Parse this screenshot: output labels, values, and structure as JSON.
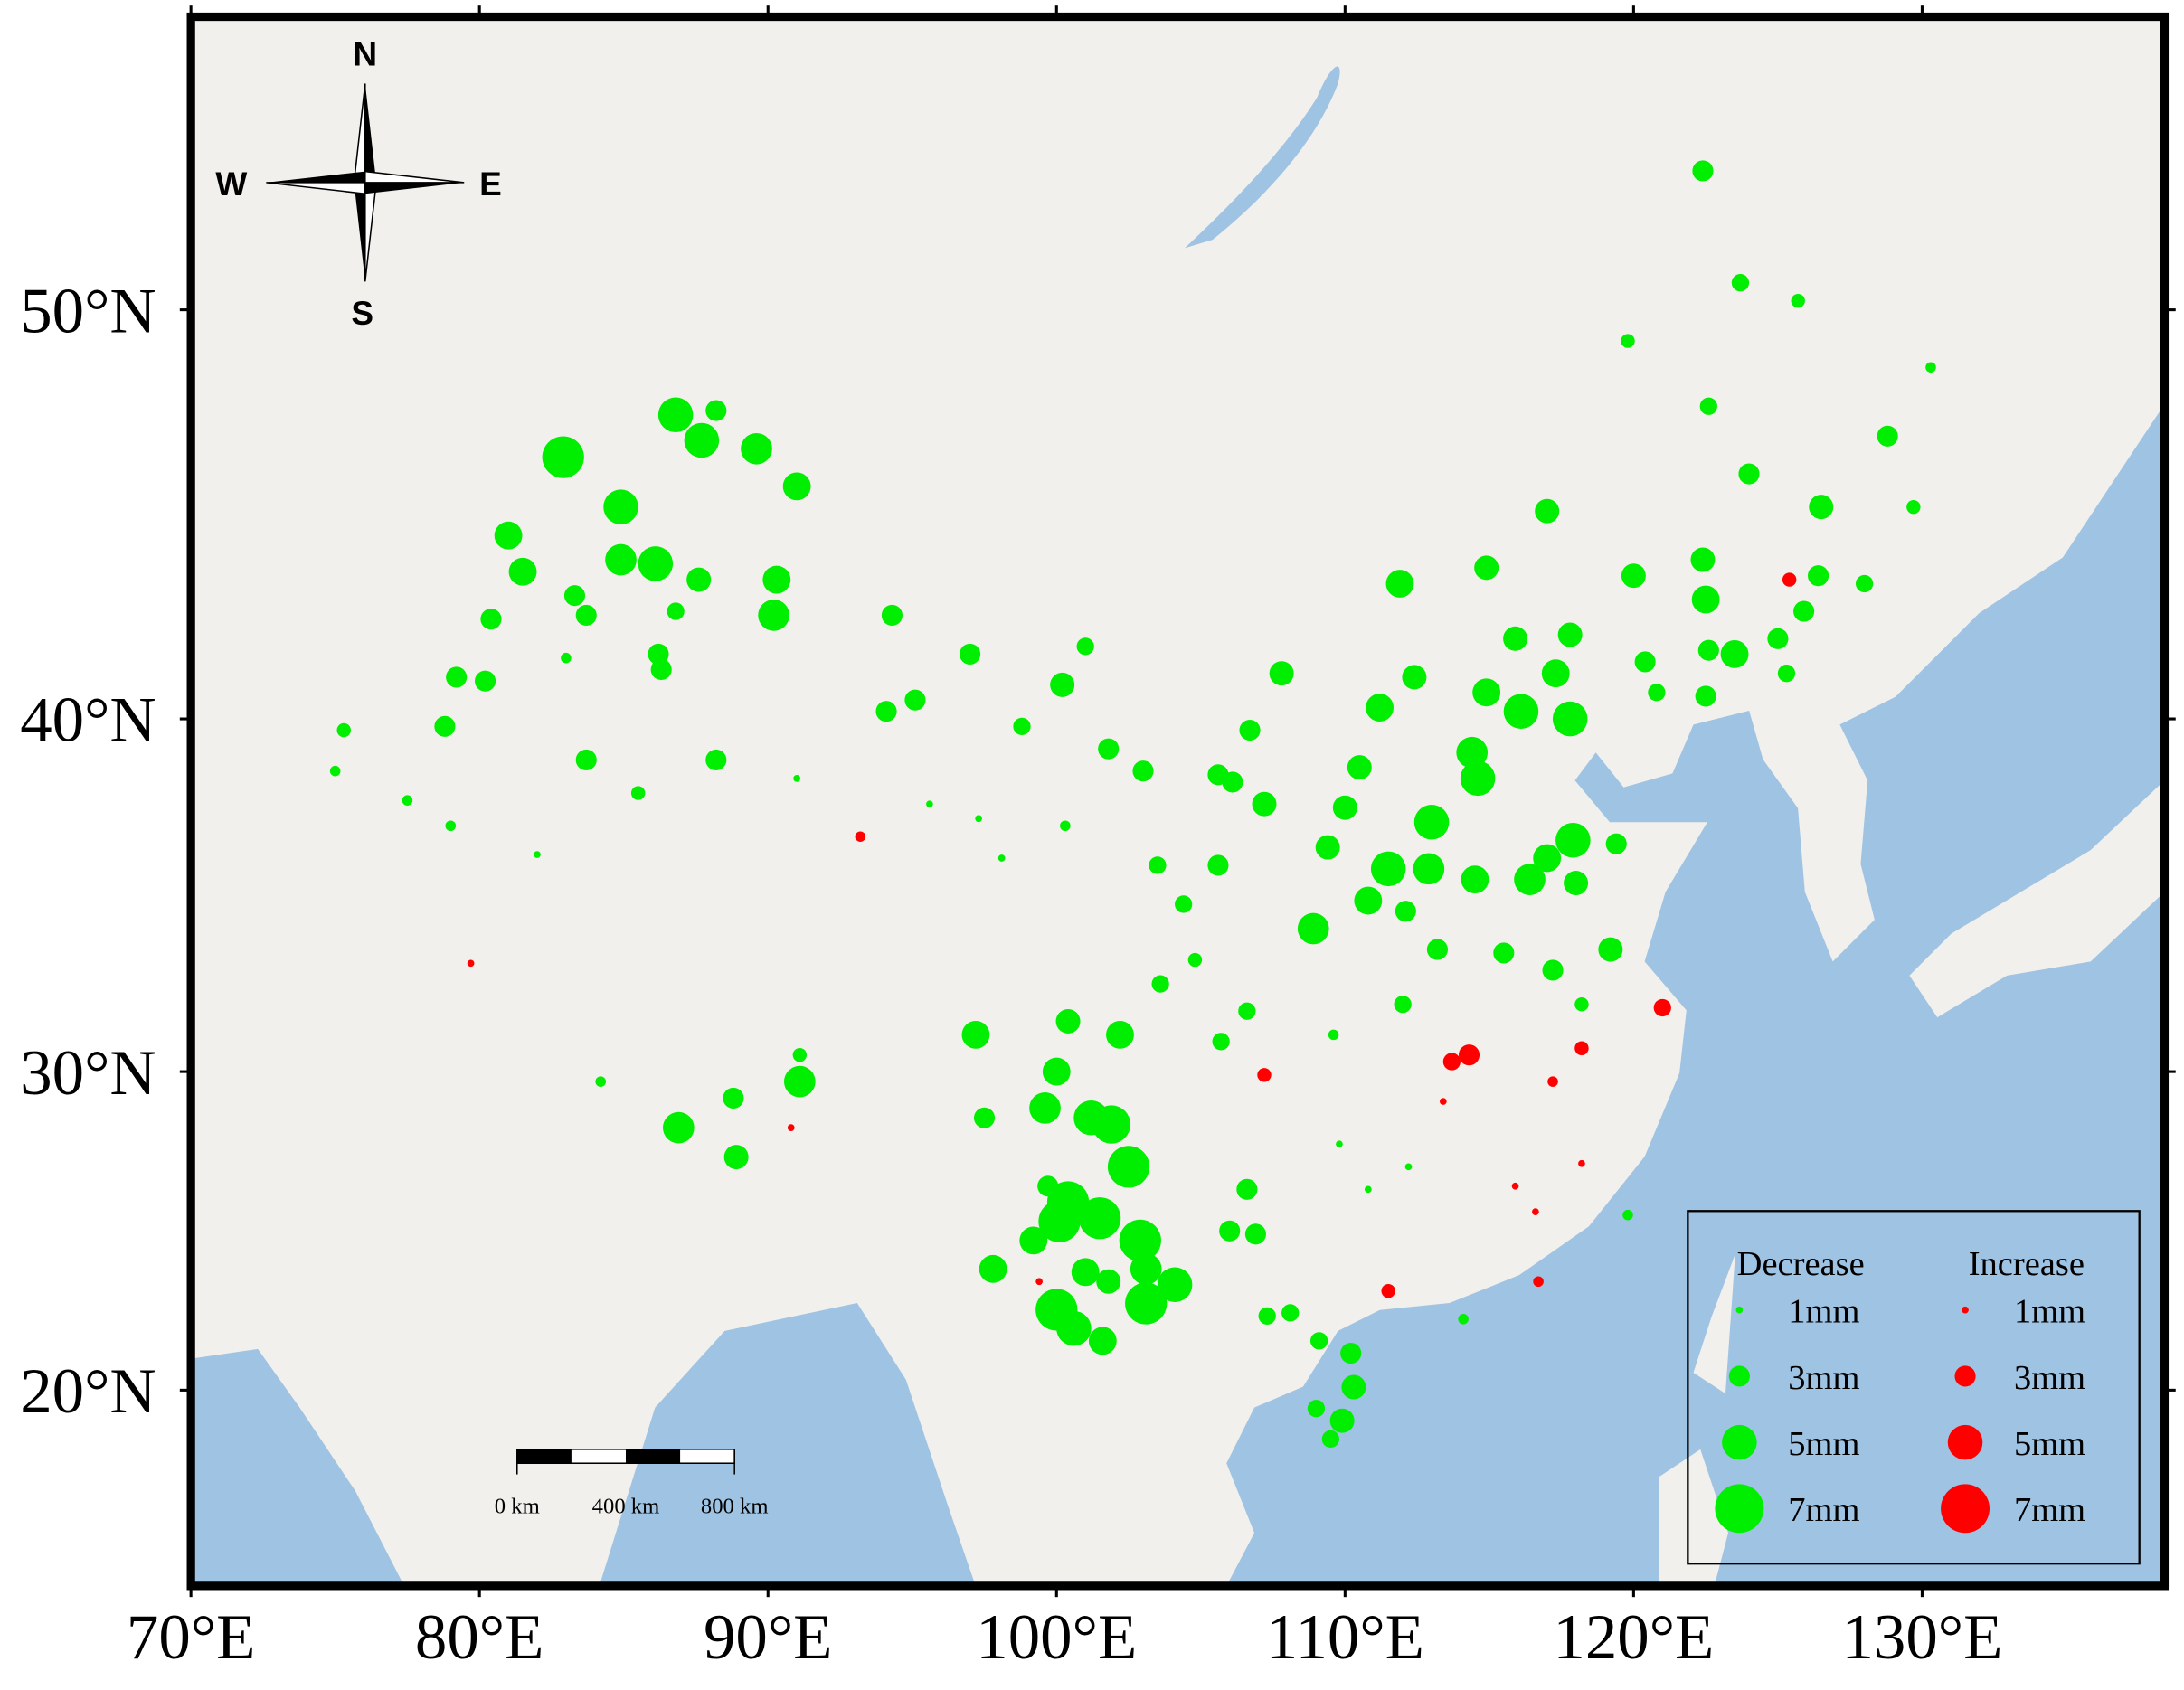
{
  "map": {
    "type": "bubble-map",
    "xlim": [
      70,
      138.4
    ],
    "ylim": [
      13.5,
      56.1
    ],
    "xticks": [
      {
        "value": 70,
        "label": "70°E"
      },
      {
        "value": 80,
        "label": "80°E"
      },
      {
        "value": 90,
        "label": "90°E"
      },
      {
        "value": 100,
        "label": "100°E"
      },
      {
        "value": 110,
        "label": "110°E"
      },
      {
        "value": 120,
        "label": "120°E"
      },
      {
        "value": 130,
        "label": "130°E"
      }
    ],
    "yticks": [
      {
        "value": 20,
        "label": "20°N"
      },
      {
        "value": 30,
        "label": "30°N"
      },
      {
        "value": 40,
        "label": "40°N"
      },
      {
        "value": 50,
        "label": "50°N"
      }
    ],
    "compass": {
      "n": "N",
      "e": "E",
      "s": "S",
      "w": "W"
    },
    "scale_bar": {
      "labels": [
        "0 km",
        "400 km",
        "800 km"
      ]
    },
    "legend_sizes": [
      {
        "value": 1,
        "label": "1mm"
      },
      {
        "value": 3,
        "label": "3mm"
      },
      {
        "value": 5,
        "label": "5mm"
      },
      {
        "value": 7,
        "label": "7mm"
      }
    ],
    "series": [
      {
        "name": "Decrease",
        "color": "#00ee00",
        "lon": [
          82.9,
          86.8,
          87.7,
          89.6,
          88.2,
          91.0,
          84.9,
          81.0,
          81.5,
          84.9,
          86.1,
          87.6,
          90.3,
          90.2,
          83.3,
          83.7,
          80.4,
          86.8,
          86.2,
          86.3,
          79.2,
          80.2,
          83.0,
          94.3,
          97.0,
          101.0,
          100.2,
          95.1,
          94.1,
          75.3,
          78.8,
          83.7,
          88.2,
          85.5,
          75.0,
          77.5,
          79.0,
          86.9,
          88.9,
          88.8,
          91.1,
          91.1,
          84.2,
          97.2,
          97.5,
          99.2,
          97.8,
          99.7,
          99.6,
          100.0,
          100.4,
          102.2,
          101.2,
          101.9,
          102.5,
          100.4,
          101.5,
          100.1,
          102.9,
          104.1,
          103.1,
          100.0,
          100.6,
          101.6,
          101.0,
          101.8,
          103.1,
          103.0,
          101.8,
          98.8,
          100.3,
          103.5,
          104.4,
          105.6,
          105.6,
          106.1,
          106.7,
          107.2,
          107.8,
          108.9,
          109.4,
          110.0,
          110.5,
          111.2,
          111.9,
          112.4,
          114.9,
          115.9,
          117.0,
          117.8,
          114.9,
          116.1,
          117.3,
          117.8,
          114.4,
          114.6,
          113.0,
          112.9,
          114.5,
          111.5,
          110.8,
          112.1,
          113.2,
          115.5,
          116.4,
          117.0,
          117.9,
          118.0,
          119.4,
          119.2,
          117.2,
          118.2,
          112.0,
          109.6,
          105.7,
          103.6,
          104.8,
          106.6,
          106.6,
          106.0,
          106.9,
          107.3,
          108.1,
          109.1,
          110.2,
          110.3,
          109.9,
          109.5,
          109.0,
          114.1,
          119.8,
          120.0,
          120.4,
          120.8,
          122.4,
          123.7,
          125.7,
          119.8,
          122.6,
          124.0,
          126.5,
          128.8,
          130.3,
          122.4,
          122.5,
          123.5,
          122.6,
          125.0,
          125.9,
          126.4,
          128.0,
          129.7,
          125.3,
          122.5,
          82.0,
          91.0,
          95.6,
          97.3,
          98.1,
          109.8,
          110.8,
          112.2
        ],
        "lat": [
          46.6,
          47.6,
          47.0,
          46.8,
          47.7,
          45.9,
          45.4,
          44.7,
          43.8,
          44.1,
          44.0,
          43.6,
          43.6,
          42.7,
          43.2,
          42.7,
          42.6,
          42.8,
          41.7,
          41.3,
          41.1,
          41.0,
          41.6,
          42.7,
          41.7,
          41.9,
          40.9,
          40.5,
          40.2,
          39.7,
          39.8,
          38.9,
          38.9,
          38.0,
          38.6,
          37.8,
          37.1,
          28.3,
          27.4,
          29.2,
          29.7,
          30.5,
          29.7,
          31.1,
          28.6,
          24.8,
          23.9,
          26.5,
          28.9,
          30.0,
          31.5,
          31.1,
          28.6,
          28.4,
          27.1,
          26.0,
          25.5,
          25.4,
          24.8,
          23.4,
          22.8,
          22.6,
          22.0,
          21.6,
          23.8,
          23.5,
          23.9,
          38.6,
          39.2,
          39.8,
          37.1,
          36.0,
          34.9,
          36.0,
          38.5,
          38.3,
          39.7,
          37.7,
          41.2,
          34.2,
          36.5,
          37.6,
          38.7,
          40.3,
          43.5,
          41.1,
          43.9,
          42.1,
          45.3,
          42.2,
          40.7,
          40.2,
          41.2,
          40.0,
          39.1,
          38.4,
          37.2,
          35.9,
          35.6,
          35.9,
          35.0,
          34.7,
          33.6,
          33.5,
          35.6,
          36.2,
          36.7,
          35.5,
          36.6,
          33.6,
          33.0,
          32.0,
          32.0,
          31.1,
          30.9,
          32.6,
          33.3,
          31.8,
          26.4,
          25.1,
          25.0,
          22.4,
          22.5,
          21.6,
          21.2,
          20.1,
          19.0,
          18.4,
          19.4,
          22.3,
          25.6,
          43.7,
          41.5,
          40.7,
          53.0,
          50.6,
          50.2,
          49.3,
          47.8,
          46.2,
          45.4,
          47.1,
          48.7,
          44.1,
          43.1,
          41.7,
          41.8,
          42.1,
          42.8,
          43.7,
          43.5,
          45.4,
          41.2,
          40.6,
          36.3,
          38.4,
          37.7,
          37.3,
          36.2,
          27.8,
          26.4,
          27.1
        ],
        "values": [
          6,
          5,
          5,
          4.5,
          3,
          4,
          5,
          4,
          4,
          4.5,
          5,
          3.5,
          4,
          4.5,
          3,
          3,
          3,
          2.5,
          3,
          3,
          3,
          3,
          1.5,
          3,
          3,
          2.5,
          3.5,
          3,
          3,
          2,
          3,
          3,
          3,
          2,
          1.5,
          1.5,
          1.5,
          4.5,
          3.5,
          3,
          4.5,
          2,
          1.5,
          4,
          3,
          4,
          4,
          3,
          4.5,
          4,
          3.5,
          4,
          5,
          5.5,
          6,
          6,
          6,
          6,
          6,
          5,
          6,
          6,
          5,
          4,
          4,
          3.5,
          4.5,
          3,
          3,
          2.5,
          1.5,
          2.5,
          2.5,
          3,
          3,
          3,
          3,
          3.5,
          3.5,
          4.5,
          3.5,
          3.5,
          3.5,
          4,
          4,
          3.5,
          3.5,
          3.5,
          3.5,
          3.5,
          4,
          5,
          4,
          5,
          4.5,
          5,
          5,
          4.5,
          4,
          5,
          4,
          3,
          3,
          3,
          4.5,
          4,
          5,
          3.5,
          3,
          3.5,
          3,
          2,
          2.5,
          1.5,
          2.5,
          2.5,
          2,
          2.5,
          3,
          3,
          3,
          2.5,
          2.5,
          2.5,
          3,
          3.5,
          3.5,
          2.5,
          2.5,
          1.5,
          1.5,
          3.5,
          3,
          2.5,
          3,
          2.5,
          2,
          2,
          2.5,
          3,
          3.5,
          3,
          1.5,
          3.5,
          4,
          4,
          3,
          3,
          3,
          3,
          2.5,
          2,
          2.5,
          3,
          1,
          1,
          1,
          1,
          1,
          1,
          1,
          1
        ]
      },
      {
        "name": "Increase",
        "color": "#ff0000",
        "lon": [
          125.4,
          121.0,
          114.3,
          113.7,
          118.2,
          117.2,
          111.5,
          116.7,
          107.2,
          93.2,
          79.7,
          90.8,
          118.2,
          116.6,
          115.9,
          113.4,
          99.4
        ],
        "lat": [
          43.6,
          31.9,
          30.5,
          30.3,
          30.7,
          29.7,
          23.2,
          23.5,
          29.9,
          36.8,
          33.2,
          28.3,
          27.2,
          25.7,
          26.5,
          29.1,
          23.5
        ],
        "values": [
          2,
          2.5,
          3,
          2.5,
          2,
          1.5,
          2,
          1.5,
          2,
          1.5,
          1,
          1,
          1,
          1,
          1,
          1,
          1
        ]
      }
    ]
  }
}
